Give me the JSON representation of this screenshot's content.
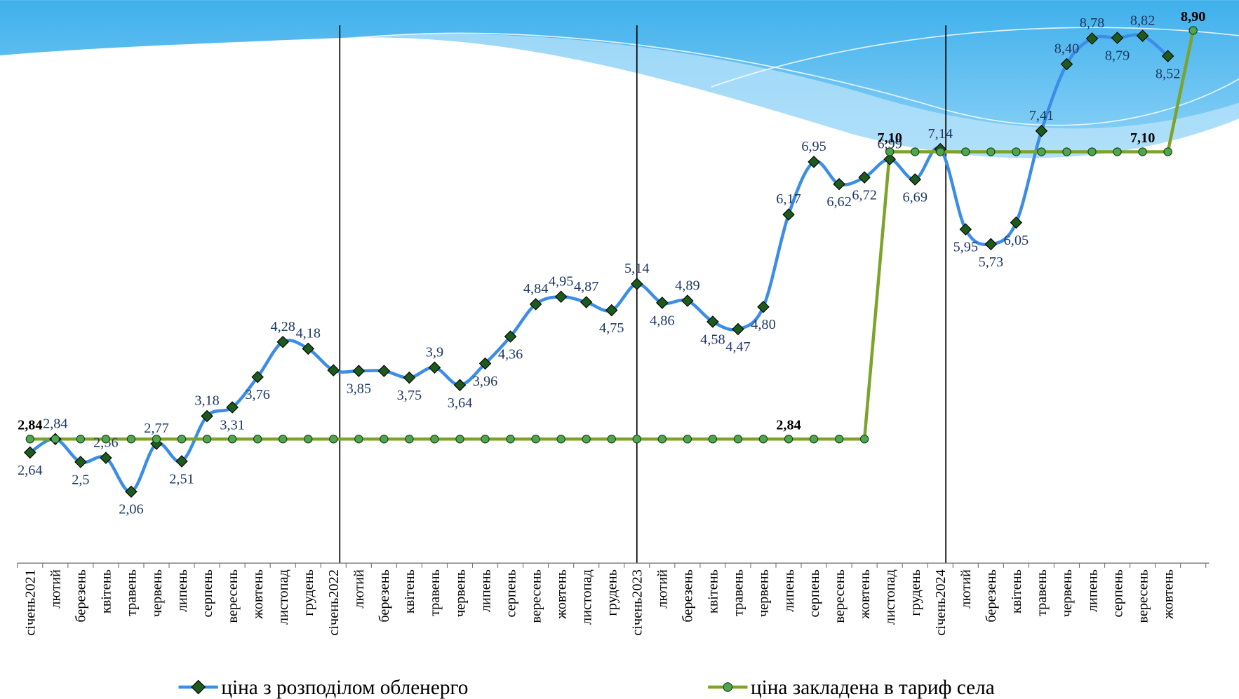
{
  "chart_data": {
    "type": "line",
    "categories": [
      "січень2021",
      "лютий",
      "березень",
      "квітень",
      "травень",
      "червень",
      "липень",
      "серпень",
      "вересень",
      "жовтень",
      "листопад",
      "грудень",
      "січень2022",
      "лютий",
      "березень",
      "квітень",
      "травень",
      "червень",
      "липень",
      "серпень",
      "вересень",
      "жовтень",
      "листопад",
      "грудень",
      "січень2023",
      "лютий",
      "березень",
      "квітень",
      "травень",
      "червень",
      "липень",
      "серпень",
      "вересень",
      "жовтень",
      "листопад",
      "грудень",
      "січень2024",
      "лютий",
      "березень",
      "квітень",
      "травень",
      "червень",
      "липень",
      "серпень",
      "вересень",
      "жовтень",
      null
    ],
    "series": [
      {
        "name": "ціна з розподілом обленерго",
        "color": "#3b8de6",
        "marker": "diamond",
        "values": [
          2.64,
          2.84,
          2.5,
          2.56,
          2.06,
          2.77,
          2.51,
          3.18,
          3.31,
          3.76,
          4.28,
          4.18,
          3.86,
          3.85,
          3.85,
          3.75,
          3.9,
          3.64,
          3.96,
          4.36,
          4.84,
          4.95,
          4.87,
          4.75,
          5.14,
          4.86,
          4.89,
          4.58,
          4.47,
          4.8,
          6.17,
          6.95,
          6.62,
          6.72,
          6.99,
          6.69,
          7.14,
          5.95,
          5.73,
          6.05,
          7.41,
          8.4,
          8.78,
          8.79,
          8.82,
          8.52,
          null
        ],
        "value_labels": [
          "2,64",
          "2,84",
          "2,5",
          "2,56",
          "2,06",
          "2,77",
          "2,51",
          "3,18",
          "3,31",
          "3,76",
          "4,28",
          "4,18",
          null,
          "3,85",
          null,
          "3,75",
          "3,9",
          "3,64",
          "3,96",
          "4,36",
          "4,84",
          "4,95",
          "4,87",
          "4,75",
          "5,14",
          "4,86",
          "4,89",
          "4,58",
          "4,47",
          "4,80",
          "6,17",
          "6,95",
          "6,62",
          "6,72",
          "6,99",
          "6,69",
          "7,14",
          "5,95",
          "5,73",
          "6,05",
          "7,41",
          "8,40",
          "8,78",
          "8,79",
          "8,82",
          "8,52",
          null
        ]
      },
      {
        "name": "ціна закладена в тариф села",
        "color": "#7ea32b",
        "marker": "circle",
        "values": [
          2.84,
          2.84,
          2.84,
          2.84,
          2.84,
          2.84,
          2.84,
          2.84,
          2.84,
          2.84,
          2.84,
          2.84,
          2.84,
          2.84,
          2.84,
          2.84,
          2.84,
          2.84,
          2.84,
          2.84,
          2.84,
          2.84,
          2.84,
          2.84,
          2.84,
          2.84,
          2.84,
          2.84,
          2.84,
          2.84,
          2.84,
          2.84,
          2.84,
          2.84,
          7.1,
          7.1,
          7.1,
          7.1,
          7.1,
          7.1,
          7.1,
          7.1,
          7.1,
          7.1,
          7.1,
          7.1,
          8.9
        ],
        "value_labels": [
          "2,84",
          null,
          null,
          null,
          null,
          null,
          null,
          null,
          null,
          null,
          null,
          null,
          null,
          null,
          null,
          null,
          null,
          null,
          null,
          null,
          null,
          null,
          null,
          null,
          null,
          null,
          null,
          null,
          null,
          null,
          "2,84",
          null,
          null,
          null,
          "7,10",
          null,
          null,
          null,
          null,
          null,
          null,
          null,
          null,
          null,
          "7,10",
          null,
          "8,90"
        ]
      }
    ],
    "ylim": [
      1,
      9.35
    ]
  }
}
